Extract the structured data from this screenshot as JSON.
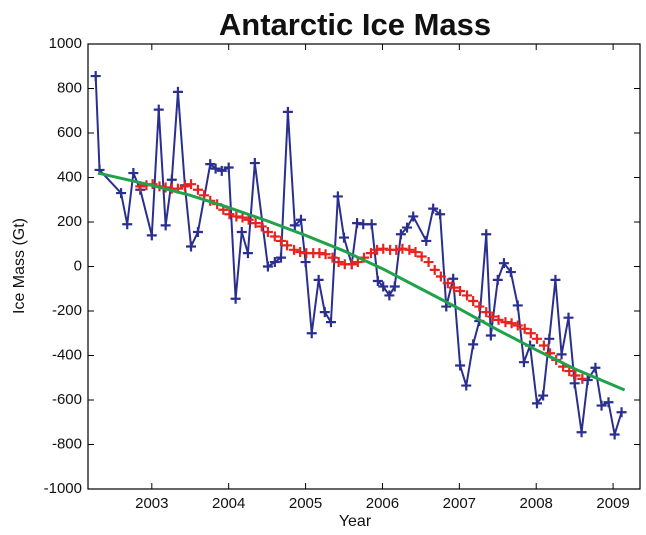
{
  "chart_data": {
    "type": "line",
    "title": "Antarctic Ice Mass",
    "x_label": "Year",
    "y_label": "Ice Mass (Gt)",
    "xlim": [
      2002.17,
      2009.35
    ],
    "xticks": [
      2003,
      2004,
      2005,
      2006,
      2007,
      2008,
      2009
    ],
    "ylim": [
      -1000,
      1000
    ],
    "yticks": [
      -1000,
      -800,
      -600,
      -400,
      -200,
      0,
      200,
      400,
      600,
      800,
      1000
    ],
    "series": [
      {
        "color": "#2a2f8f",
        "line": true,
        "markers": true,
        "x": [
          2002.27,
          2002.32,
          2002.6,
          2002.68,
          2002.76,
          2002.85,
          2003.0,
          2003.09,
          2003.18,
          2003.26,
          2003.34,
          2003.43,
          2003.51,
          2003.6,
          2003.76,
          2003.83,
          2003.91,
          2004.0,
          2004.09,
          2004.17,
          2004.25,
          2004.34,
          2004.51,
          2004.6,
          2004.68,
          2004.77,
          2004.86,
          2004.94,
          2005.0,
          2005.08,
          2005.17,
          2005.25,
          2005.33,
          2005.42,
          2005.5,
          2005.6,
          2005.67,
          2005.75,
          2005.86,
          2005.94,
          2006.01,
          2006.09,
          2006.16,
          2006.24,
          2006.32,
          2006.4,
          2006.57,
          2006.66,
          2006.75,
          2006.83,
          2006.92,
          2007.01,
          2007.09,
          2007.18,
          2007.26,
          2007.35,
          2007.41,
          2007.5,
          2007.58,
          2007.67,
          2007.76,
          2007.84,
          2007.92,
          2008.01,
          2008.09,
          2008.17,
          2008.25,
          2008.33,
          2008.42,
          2008.5,
          2008.59,
          2008.67,
          2008.77,
          2008.85,
          2008.94,
          2009.02,
          2009.11
        ],
        "values": [
          856,
          434,
          330,
          190,
          420,
          345,
          140,
          705,
          185,
          390,
          785,
          365,
          90,
          155,
          460,
          440,
          430,
          445,
          -145,
          155,
          60,
          465,
          0,
          20,
          40,
          695,
          185,
          210,
          20,
          -300,
          -60,
          -205,
          -250,
          315,
          130,
          10,
          195,
          190,
          190,
          -65,
          -90,
          -130,
          -90,
          145,
          175,
          225,
          115,
          260,
          235,
          -180,
          -55,
          -445,
          -535,
          -350,
          -245,
          145,
          -310,
          -60,
          15,
          -25,
          -175,
          -430,
          -355,
          -615,
          -580,
          -325,
          -60,
          -395,
          -230,
          -525,
          -745,
          -510,
          -455,
          -625,
          -610,
          -755,
          -655
        ]
      },
      {
        "color": "#e8221e",
        "line": false,
        "markers": true,
        "x": [
          2002.85,
          2002.93,
          2003.01,
          2003.1,
          2003.18,
          2003.26,
          2003.34,
          2003.43,
          2003.51,
          2003.6,
          2003.68,
          2003.76,
          2003.85,
          2003.93,
          2004.01,
          2004.1,
          2004.18,
          2004.26,
          2004.35,
          2004.43,
          2004.51,
          2004.6,
          2004.68,
          2004.76,
          2004.85,
          2004.93,
          2005.01,
          2005.1,
          2005.18,
          2005.26,
          2005.35,
          2005.43,
          2005.51,
          2005.6,
          2005.68,
          2005.76,
          2005.85,
          2005.93,
          2006.01,
          2006.1,
          2006.18,
          2006.26,
          2006.35,
          2006.43,
          2006.51,
          2006.6,
          2006.68,
          2006.76,
          2006.85,
          2006.93,
          2007.01,
          2007.1,
          2007.18,
          2007.26,
          2007.35,
          2007.43,
          2007.51,
          2007.6,
          2007.68,
          2007.76,
          2007.85,
          2007.93,
          2008.01,
          2008.1,
          2008.18,
          2008.26,
          2008.35,
          2008.43,
          2008.51,
          2008.6
        ],
        "values": [
          360,
          365,
          370,
          360,
          355,
          350,
          350,
          360,
          370,
          345,
          320,
          295,
          280,
          255,
          235,
          225,
          220,
          210,
          195,
          180,
          155,
          135,
          115,
          95,
          75,
          65,
          60,
          60,
          60,
          55,
          40,
          20,
          10,
          10,
          20,
          40,
          60,
          75,
          80,
          75,
          75,
          80,
          75,
          65,
          45,
          20,
          -15,
          -45,
          -75,
          -95,
          -110,
          -130,
          -155,
          -180,
          -205,
          -225,
          -240,
          -250,
          -255,
          -265,
          -280,
          -300,
          -325,
          -355,
          -390,
          -420,
          -450,
          -470,
          -490,
          -505
        ]
      },
      {
        "color": "#1fa34a",
        "line": true,
        "markers": false,
        "x": [
          2002.3,
          2003,
          2003.5,
          2004,
          2004.5,
          2005,
          2005.5,
          2006,
          2006.5,
          2007,
          2007.5,
          2008,
          2008.5,
          2009.15
        ],
        "values": [
          420,
          365,
          320,
          265,
          205,
          140,
          70,
          -10,
          -100,
          -190,
          -285,
          -375,
          -460,
          -555
        ]
      }
    ]
  }
}
